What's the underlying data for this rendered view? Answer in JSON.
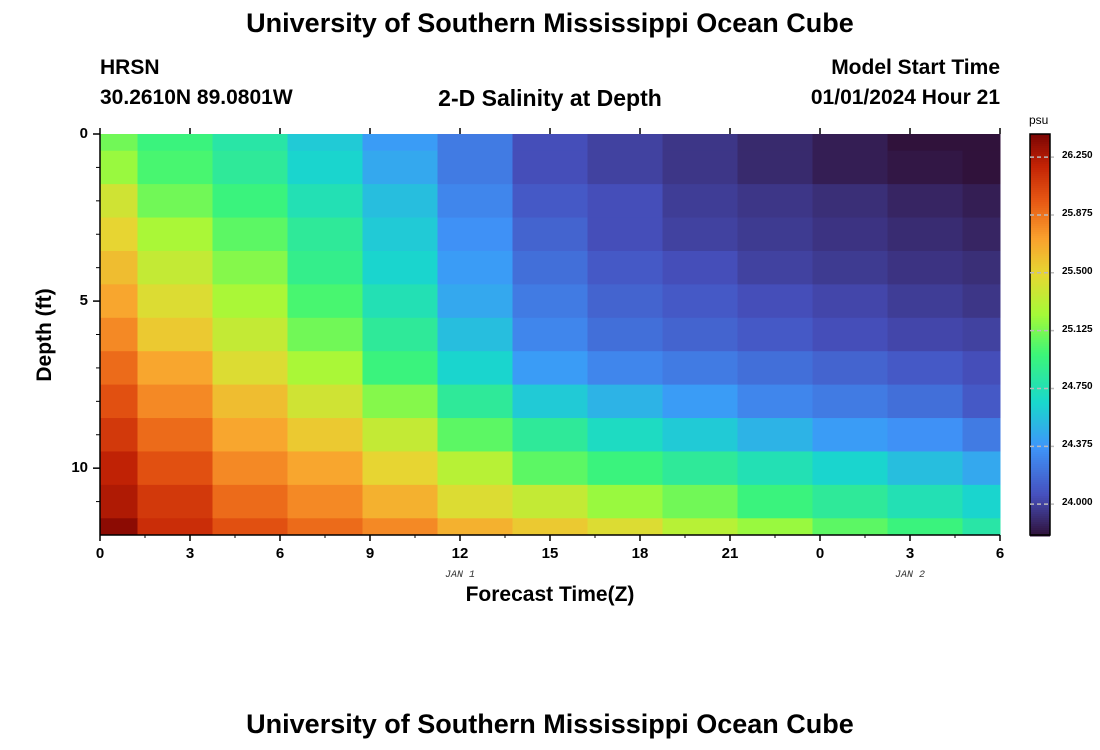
{
  "header": {
    "title": "University of Southern Mississippi Ocean Cube",
    "station": "HRSN",
    "coords": "30.2610N  89.0801W",
    "plot_title": "2-D Salinity at Depth",
    "model_label": "Model Start Time",
    "model_time": "01/01/2024 Hour 21"
  },
  "footer": {
    "title": "University of Southern Mississippi Ocean Cube"
  },
  "chart_data": {
    "type": "heatmap",
    "title": "2-D Salinity at Depth",
    "xlabel": "Forecast Time(Z)",
    "ylabel": "Depth (ft)",
    "x_ticks": [
      "0",
      "3",
      "6",
      "9",
      "12",
      "15",
      "18",
      "21",
      "0",
      "3",
      "6"
    ],
    "x_tick_hours": [
      0,
      3,
      6,
      9,
      12,
      15,
      18,
      21,
      24,
      27,
      30
    ],
    "x_range_hours": [
      0,
      30
    ],
    "day_labels": [
      {
        "text": "JAN 1",
        "hour": 12
      },
      {
        "text": "JAN 2",
        "hour": 27
      }
    ],
    "y_ticks": [
      "0",
      "5",
      "10"
    ],
    "y_tick_values": [
      0,
      5,
      10
    ],
    "y_range_ft": [
      0,
      12
    ],
    "time_bins_hours": [
      0,
      1.25,
      3.75,
      6.25,
      8.75,
      11.25,
      13.75,
      16.25,
      18.75,
      21.25,
      23.75,
      26.25,
      28.75,
      30
    ],
    "depth_bins_ft": [
      0,
      0.5,
      1.5,
      2.5,
      3.5,
      4.5,
      5.5,
      6.5,
      7.5,
      8.5,
      9.5,
      10.5,
      11.5,
      12
    ],
    "colorbar": {
      "unit": "psu",
      "ticks": [
        "26.250",
        "25.875",
        "25.500",
        "25.125",
        "24.750",
        "24.375",
        "24.000"
      ],
      "tick_values": [
        26.25,
        25.875,
        25.5,
        25.125,
        24.75,
        24.375,
        24.0
      ],
      "range": [
        23.8,
        26.4
      ]
    },
    "salinity_psu": [
      [
        25.1,
        24.95,
        24.8,
        24.6,
        24.4,
        24.25,
        24.05,
        24.0,
        23.95,
        23.9,
        23.85,
        23.8,
        23.6
      ],
      [
        25.2,
        25.0,
        24.85,
        24.65,
        24.45,
        24.25,
        24.05,
        24.0,
        23.95,
        23.9,
        23.85,
        23.82,
        23.78
      ],
      [
        25.4,
        25.1,
        24.95,
        24.75,
        24.55,
        24.3,
        24.1,
        24.05,
        23.98,
        23.95,
        23.92,
        23.88,
        23.85
      ],
      [
        25.5,
        25.25,
        25.05,
        24.85,
        24.6,
        24.35,
        24.15,
        24.05,
        24.0,
        23.97,
        23.94,
        23.91,
        23.88
      ],
      [
        25.6,
        25.35,
        25.15,
        24.9,
        24.65,
        24.4,
        24.2,
        24.1,
        24.05,
        24.0,
        23.97,
        23.94,
        23.92
      ],
      [
        25.7,
        25.45,
        25.25,
        25.0,
        24.75,
        24.45,
        24.25,
        24.15,
        24.1,
        24.05,
        24.02,
        23.98,
        23.95
      ],
      [
        25.8,
        25.55,
        25.35,
        25.1,
        24.85,
        24.55,
        24.3,
        24.2,
        24.15,
        24.1,
        24.05,
        24.02,
        24.0
      ],
      [
        25.9,
        25.7,
        25.45,
        25.25,
        24.95,
        24.65,
        24.4,
        24.3,
        24.25,
        24.2,
        24.15,
        24.1,
        24.05
      ],
      [
        26.0,
        25.8,
        25.6,
        25.4,
        25.15,
        24.85,
        24.6,
        24.5,
        24.4,
        24.3,
        24.25,
        24.2,
        24.1
      ],
      [
        26.1,
        25.9,
        25.7,
        25.55,
        25.35,
        25.05,
        24.85,
        24.7,
        24.6,
        24.5,
        24.4,
        24.35,
        24.25
      ],
      [
        26.2,
        26.0,
        25.8,
        25.7,
        25.5,
        25.3,
        25.05,
        24.95,
        24.85,
        24.75,
        24.65,
        24.55,
        24.45
      ],
      [
        26.25,
        26.1,
        25.9,
        25.8,
        25.65,
        25.45,
        25.35,
        25.2,
        25.1,
        24.95,
        24.85,
        24.75,
        24.65
      ],
      [
        26.35,
        26.15,
        26.0,
        25.9,
        25.8,
        25.65,
        25.55,
        25.45,
        25.3,
        25.2,
        25.05,
        24.95,
        24.8
      ]
    ]
  }
}
